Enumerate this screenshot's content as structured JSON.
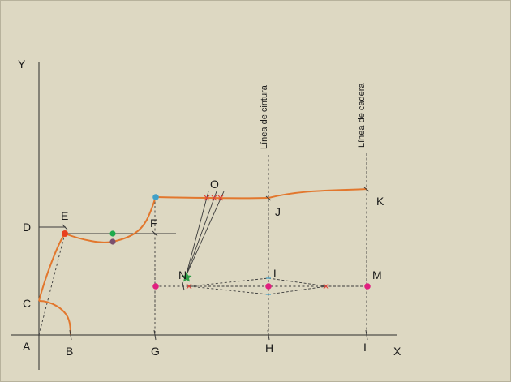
{
  "points": {
    "Y": "Y",
    "X": "X",
    "A": "A",
    "B": "B",
    "C": "C",
    "D": "D",
    "E": "E",
    "F": "F",
    "G": "G",
    "H": "H",
    "I": "I",
    "J": "J",
    "K": "K",
    "L": "L",
    "M": "M",
    "N": "N",
    "O": "O"
  },
  "guide_lines": {
    "waist": "Línea de cintura",
    "hip": "Línea de cadera"
  },
  "colors": {
    "background": "#ddd8c2",
    "curve": "#e2772d",
    "marker_red": "#e8401f",
    "marker_green": "#1faa4c",
    "marker_purple": "#7a4f6d",
    "marker_blue": "#3fa0c8",
    "marker_magenta": "#e0207f",
    "cross_red": "#e0453a",
    "star_green": "#2f9e47"
  }
}
